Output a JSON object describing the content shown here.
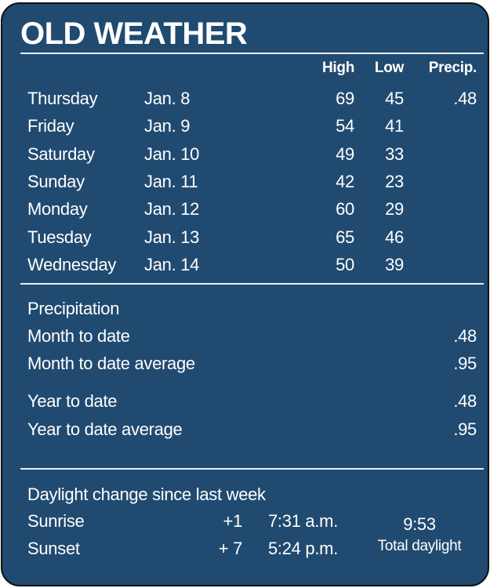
{
  "title": "OLD WEATHER",
  "colors": {
    "background": "#214a70",
    "text": "#ffffff"
  },
  "headers": {
    "high": "High",
    "low": "Low",
    "precip": "Precip."
  },
  "days": [
    {
      "day": "Thursday",
      "date": "Jan. 8",
      "high": "69",
      "low": "45",
      "precip": ".48"
    },
    {
      "day": "Friday",
      "date": "Jan. 9",
      "high": "54",
      "low": "41",
      "precip": ""
    },
    {
      "day": "Saturday",
      "date": "Jan. 10",
      "high": "49",
      "low": "33",
      "precip": ""
    },
    {
      "day": "Sunday",
      "date": "Jan. 11",
      "high": "42",
      "low": "23",
      "precip": ""
    },
    {
      "day": "Monday",
      "date": "Jan. 12",
      "high": "60",
      "low": "29",
      "precip": ""
    },
    {
      "day": "Tuesday",
      "date": "Jan. 13",
      "high": "65",
      "low": "46",
      "precip": ""
    },
    {
      "day": "Wednesday",
      "date": "Jan. 14",
      "high": "50",
      "low": "39",
      "precip": ""
    }
  ],
  "precipitation": {
    "heading": "Precipitation",
    "rows": [
      {
        "label": "Month to date",
        "value": ".48"
      },
      {
        "label": "Month to date average",
        "value": ".95"
      },
      {
        "label": "Year to date",
        "value": ".48"
      },
      {
        "label": "Year to date average",
        "value": ".95"
      }
    ]
  },
  "daylight": {
    "heading": "Daylight change since last week",
    "sunrise": {
      "label": "Sunrise",
      "change": "+1",
      "time": "7:31 a.m."
    },
    "sunset": {
      "label": "Sunset",
      "change": "+ 7",
      "time": "5:24 p.m."
    },
    "total": "9:53",
    "total_label": "Total daylight"
  }
}
